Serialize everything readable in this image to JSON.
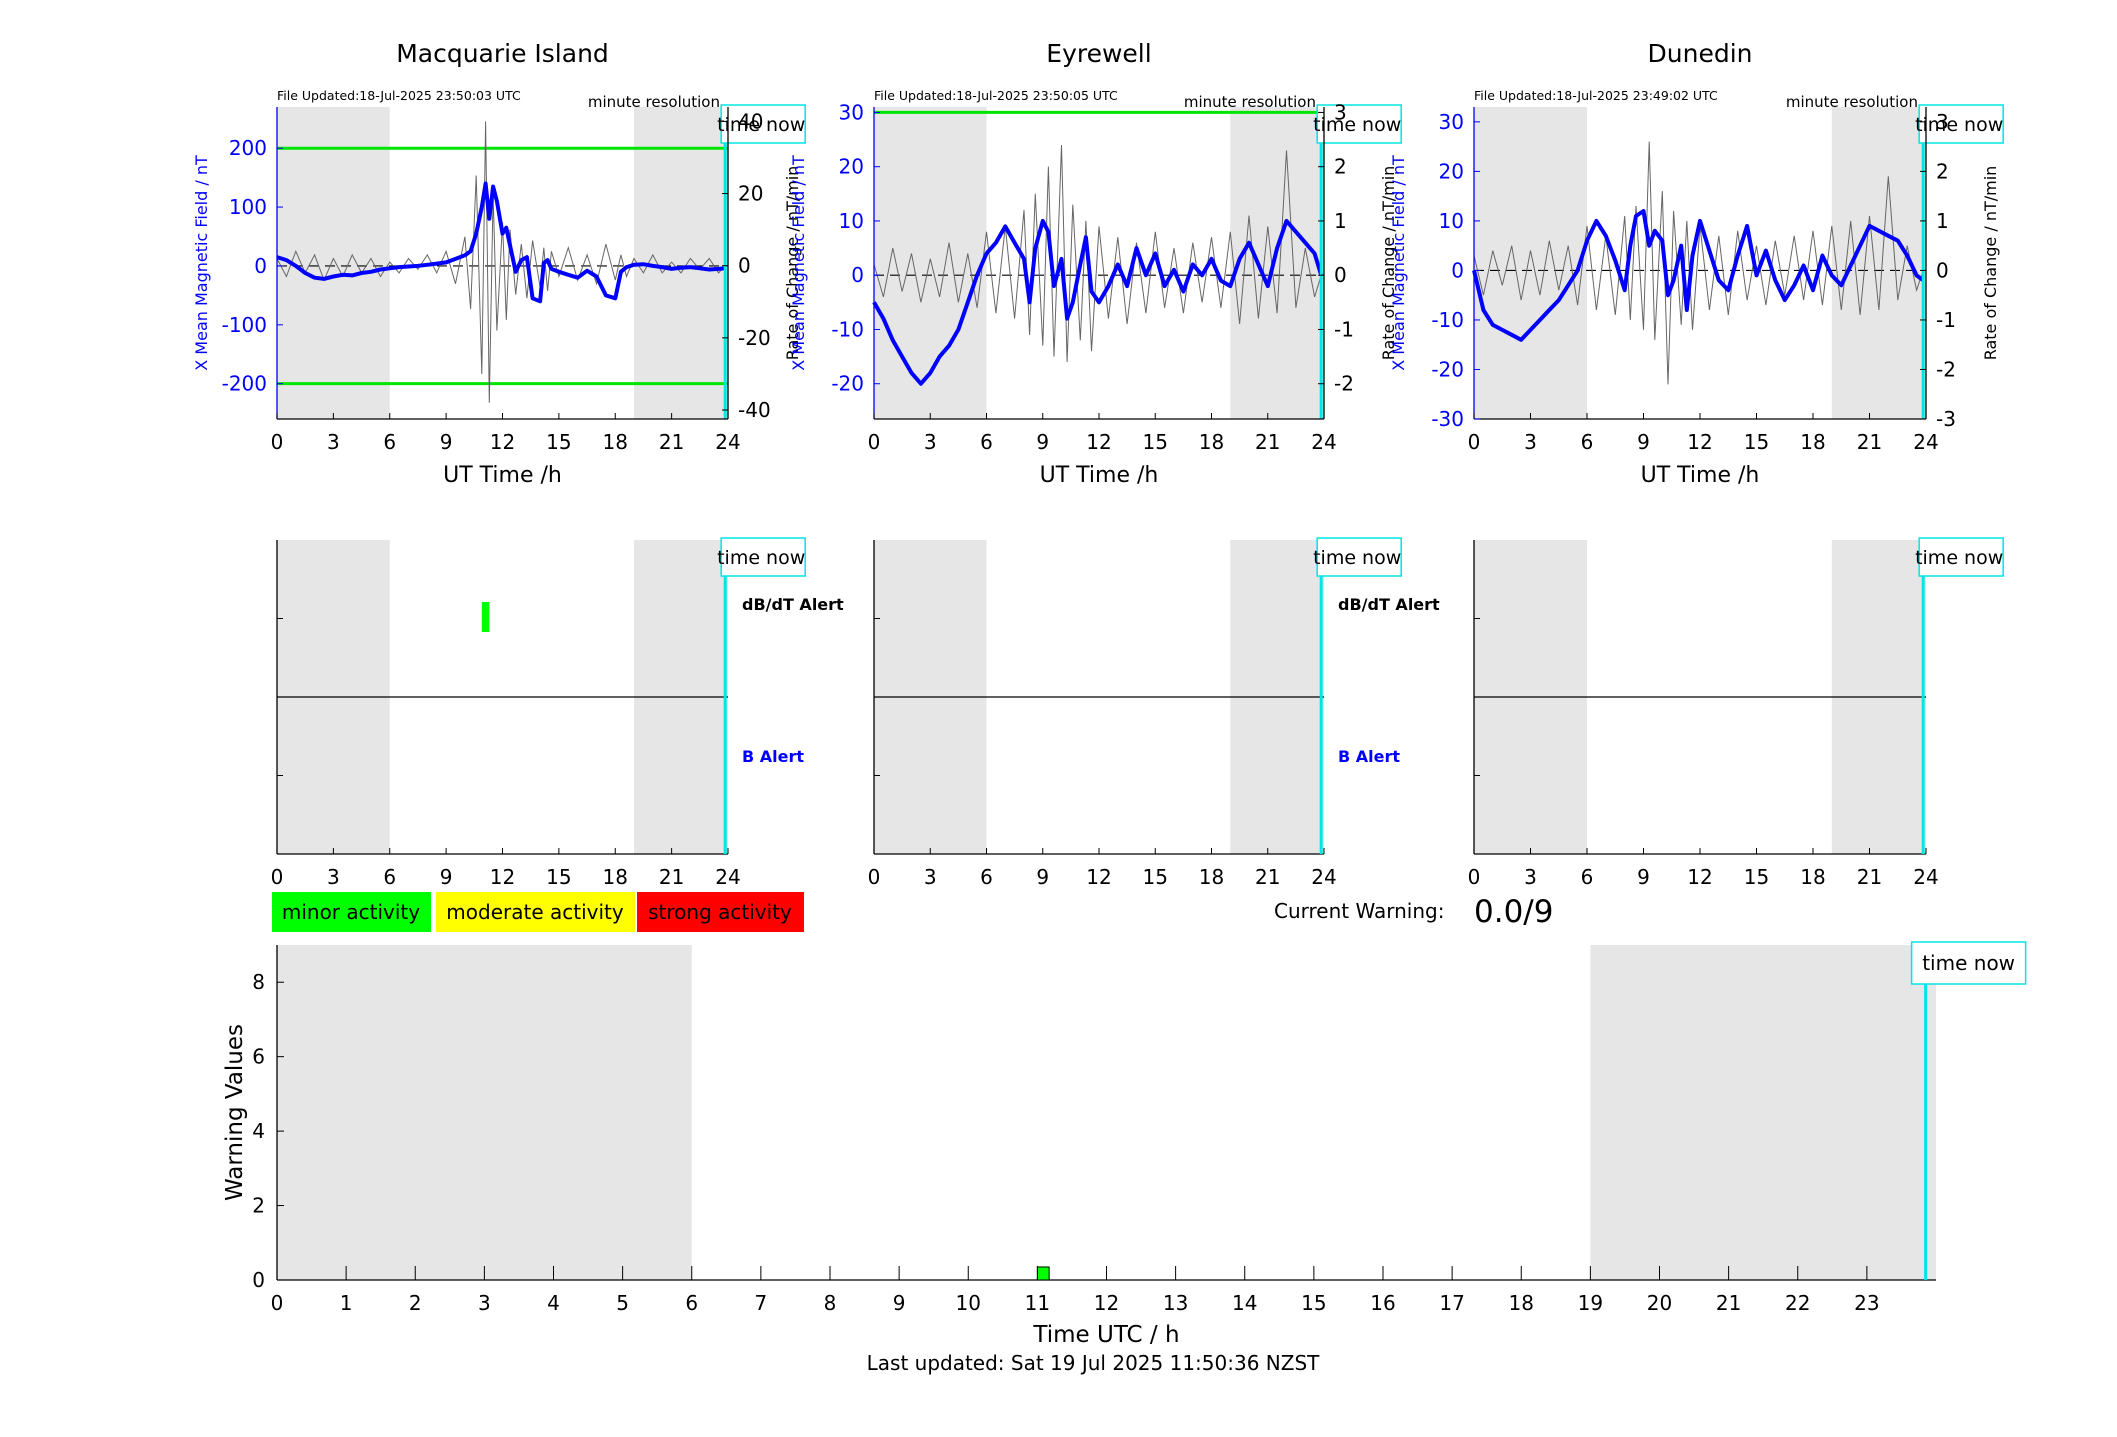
{
  "colors": {
    "shade": "#e6e6e6",
    "blue": "#0000ff",
    "cyan": "#00e5e5",
    "limit_green": "#00e600",
    "rate_gray": "#666666",
    "minor": "#00ff00",
    "moderate": "#ffff00",
    "strong": "#ff0000"
  },
  "stations": [
    {
      "name": "Macquarie Island",
      "file_updated": "File Updated:18-Jul-2025 23:50:03 UTC",
      "resolution": "minute resolution",
      "time_now_label": "time now",
      "ylabel_left": "X Mean Magnetic Field / nT",
      "ylabel_right": "Rate of Change / nT/min",
      "xlabel": "UT Time /h",
      "xticks": [
        "0",
        "3",
        "6",
        "9",
        "12",
        "15",
        "18",
        "21",
        "24"
      ],
      "yticks_left": [
        "-200",
        "-100",
        "0",
        "100",
        "200"
      ],
      "yticks_right": [
        "-40",
        "-20",
        "0",
        "20",
        "40"
      ],
      "alert_labels": {
        "dbdt": "dB/dT Alert",
        "b": "B Alert"
      },
      "alert_xticks": [
        "0",
        "3",
        "6",
        "9",
        "12",
        "15",
        "18",
        "21",
        "24"
      ]
    },
    {
      "name": "Eyrewell",
      "file_updated": "File Updated:18-Jul-2025 23:50:05 UTC",
      "resolution": "minute resolution",
      "time_now_label": "time now",
      "ylabel_left": "X Mean Magnetic Field / nT",
      "ylabel_right": "Rate of Change / nT/min",
      "xlabel": "UT Time /h",
      "xticks": [
        "0",
        "3",
        "6",
        "9",
        "12",
        "15",
        "18",
        "21",
        "24"
      ],
      "yticks_left": [
        "-20",
        "-10",
        "0",
        "10",
        "20",
        "30"
      ],
      "yticks_right": [
        "-2",
        "-1",
        "0",
        "1",
        "2",
        "3"
      ],
      "alert_labels": {
        "dbdt": "dB/dT Alert",
        "b": "B Alert"
      },
      "alert_xticks": [
        "0",
        "3",
        "6",
        "9",
        "12",
        "15",
        "18",
        "21",
        "24"
      ]
    },
    {
      "name": "Dunedin",
      "file_updated": "File Updated:18-Jul-2025 23:49:02 UTC",
      "resolution": "minute resolution",
      "time_now_label": "time now",
      "ylabel_left": "X Mean Magnetic Field / nT",
      "ylabel_right": "Rate of Change / nT/min",
      "xlabel": "UT Time /h",
      "xticks": [
        "0",
        "3",
        "6",
        "9",
        "12",
        "15",
        "18",
        "21",
        "24"
      ],
      "yticks_left": [
        "-30",
        "-20",
        "-10",
        "0",
        "10",
        "20",
        "30"
      ],
      "yticks_right": [
        "-3",
        "-2",
        "-1",
        "0",
        "1",
        "2",
        "3"
      ],
      "alert_labels": {
        "dbdt": "",
        "b": ""
      },
      "alert_xticks": [
        "0",
        "3",
        "6",
        "9",
        "12",
        "15",
        "18",
        "21",
        "24"
      ]
    }
  ],
  "legend": {
    "minor": "minor activity",
    "moderate": "moderate activity",
    "strong": "strong activity"
  },
  "current_warning": {
    "label": "Current Warning:",
    "value": "0.0/9"
  },
  "warning_panel": {
    "ylabel": "Warning Values",
    "xlabel": "Time UTC / h",
    "time_now_label": "time now",
    "yticks": [
      "0",
      "2",
      "4",
      "6",
      "8"
    ],
    "xticks": [
      "0",
      "1",
      "2",
      "3",
      "4",
      "5",
      "6",
      "7",
      "8",
      "9",
      "10",
      "11",
      "12",
      "13",
      "14",
      "15",
      "16",
      "17",
      "18",
      "19",
      "20",
      "21",
      "22",
      "23"
    ]
  },
  "last_updated": "Last updated: Sat 19 Jul 2025 11:50:36 NZST",
  "chart_data": [
    {
      "type": "line",
      "title": "Macquarie Island",
      "xlabel": "UT Time /h",
      "ylabel": "X Mean Magnetic Field / nT",
      "y2label": "Rate of Change / nT/min",
      "xlim": [
        0,
        24
      ],
      "ylim": [
        -260,
        270
      ],
      "y2lim": [
        -42.5,
        44
      ],
      "night_shading_h": [
        [
          0,
          6
        ],
        [
          19,
          24
        ]
      ],
      "time_now_h": 23.85,
      "limit_lines_nT": [
        200,
        -200
      ],
      "series": [
        {
          "axis": "left",
          "x": [
            0,
            0.5,
            1,
            1.5,
            2,
            2.5,
            3,
            3.5,
            4,
            4.5,
            5,
            5.5,
            6,
            6.5,
            7,
            7.5,
            8,
            8.5,
            9,
            9.5,
            10,
            10.3,
            10.6,
            10.9,
            11.1,
            11.3,
            11.5,
            11.7,
            12,
            12.2,
            12.4,
            12.7,
            13,
            13.3,
            13.6,
            14,
            14.2,
            14.4,
            14.6,
            15,
            15.5,
            16,
            16.5,
            17,
            17.5,
            18,
            18.3,
            18.6,
            19,
            19.5,
            20,
            20.5,
            21,
            21.5,
            22,
            22.5,
            23,
            23.5,
            23.85
          ],
          "values": [
            15,
            10,
            0,
            -12,
            -20,
            -22,
            -18,
            -15,
            -16,
            -12,
            -10,
            -6,
            -4,
            -2,
            -1,
            0,
            2,
            4,
            6,
            12,
            18,
            25,
            55,
            100,
            140,
            80,
            135,
            110,
            55,
            65,
            35,
            -10,
            10,
            15,
            -55,
            -60,
            5,
            10,
            -5,
            -10,
            -15,
            -20,
            -8,
            -18,
            -50,
            -55,
            -10,
            -2,
            2,
            3,
            0,
            -2,
            -5,
            -3,
            -2,
            -4,
            -6,
            -5,
            -4
          ]
        },
        {
          "axis": "right",
          "x": [
            0,
            0.5,
            1,
            1.5,
            2,
            2.5,
            3,
            3.5,
            4,
            4.5,
            5,
            5.5,
            6,
            6.5,
            7,
            7.5,
            8,
            8.5,
            9,
            9.5,
            10,
            10.3,
            10.6,
            10.9,
            11.1,
            11.3,
            11.5,
            11.7,
            12,
            12.2,
            12.4,
            12.7,
            13,
            13.3,
            13.6,
            14,
            14.2,
            14.4,
            14.6,
            15,
            15.5,
            16,
            16.5,
            17,
            17.5,
            18,
            18.3,
            18.6,
            19,
            19.5,
            20,
            20.5,
            21,
            21.5,
            22,
            22.5,
            23,
            23.5,
            23.85
          ],
          "values": [
            2,
            -3,
            4,
            -2,
            3,
            -4,
            2,
            -3,
            3,
            -2,
            2,
            -3,
            1,
            -2,
            2,
            -1,
            3,
            -2,
            4,
            -5,
            8,
            -12,
            25,
            -30,
            40,
            -38,
            20,
            -18,
            12,
            -15,
            10,
            -8,
            6,
            -9,
            7,
            -6,
            5,
            -7,
            4,
            -3,
            5,
            -4,
            3,
            -5,
            6,
            -4,
            3,
            -3,
            2,
            -2,
            3,
            -2,
            1,
            -2,
            2,
            -1,
            2,
            -2,
            0
          ]
        }
      ]
    },
    {
      "type": "line",
      "title": "Eyrewell",
      "xlabel": "UT Time /h",
      "ylabel": "X Mean Magnetic Field / nT",
      "y2label": "Rate of Change / nT/min",
      "xlim": [
        0,
        24
      ],
      "ylim": [
        -26.5,
        31
      ],
      "y2lim": [
        -2.65,
        3.1
      ],
      "night_shading_h": [
        [
          0,
          6
        ],
        [
          19,
          24
        ]
      ],
      "time_now_h": 23.85,
      "limit_lines_nT": [
        30
      ],
      "series": [
        {
          "axis": "left",
          "x": [
            0,
            0.5,
            1,
            1.5,
            2,
            2.5,
            3,
            3.5,
            4,
            4.5,
            5,
            5.5,
            6,
            6.5,
            7,
            7.5,
            8,
            8.3,
            8.6,
            9,
            9.3,
            9.6,
            10,
            10.3,
            10.6,
            11,
            11.3,
            11.6,
            12,
            12.5,
            13,
            13.5,
            14,
            14.5,
            15,
            15.5,
            16,
            16.5,
            17,
            17.5,
            18,
            18.5,
            19,
            19.5,
            20,
            20.5,
            21,
            21.5,
            22,
            22.5,
            23,
            23.5,
            23.85
          ],
          "values": [
            -5,
            -8,
            -12,
            -15,
            -18,
            -20,
            -18,
            -15,
            -13,
            -10,
            -5,
            0,
            4,
            6,
            9,
            6,
            3,
            -5,
            5,
            10,
            8,
            -2,
            3,
            -8,
            -5,
            2,
            7,
            -3,
            -5,
            -2,
            2,
            -2,
            5,
            0,
            4,
            -2,
            1,
            -3,
            2,
            0,
            3,
            -1,
            -2,
            3,
            6,
            2,
            -2,
            5,
            10,
            8,
            6,
            4,
            0
          ]
        },
        {
          "axis": "right",
          "x": [
            0,
            0.5,
            1,
            1.5,
            2,
            2.5,
            3,
            3.5,
            4,
            4.5,
            5,
            5.5,
            6,
            6.5,
            7,
            7.5,
            8,
            8.3,
            8.6,
            9,
            9.3,
            9.6,
            10,
            10.3,
            10.6,
            11,
            11.3,
            11.6,
            12,
            12.5,
            13,
            13.5,
            14,
            14.5,
            15,
            15.5,
            16,
            16.5,
            17,
            17.5,
            18,
            18.5,
            19,
            19.5,
            20,
            20.5,
            21,
            21.5,
            22,
            22.5,
            23,
            23.5,
            23.85
          ],
          "values": [
            0.2,
            -0.4,
            0.5,
            -0.3,
            0.4,
            -0.5,
            0.3,
            -0.4,
            0.6,
            -0.5,
            0.4,
            -0.6,
            0.8,
            -0.7,
            0.9,
            -0.8,
            1.2,
            -1.1,
            1.5,
            -1.3,
            2.0,
            -1.5,
            2.4,
            -1.6,
            1.3,
            -1.2,
            1.0,
            -1.4,
            0.9,
            -0.8,
            0.7,
            -0.9,
            0.6,
            -0.7,
            0.8,
            -0.6,
            0.5,
            -0.7,
            0.6,
            -0.5,
            0.7,
            -0.6,
            0.8,
            -0.9,
            1.1,
            -0.8,
            0.9,
            -0.7,
            2.3,
            -0.6,
            0.5,
            -0.4,
            0
          ]
        }
      ]
    },
    {
      "type": "line",
      "title": "Dunedin",
      "xlabel": "UT Time /h",
      "ylabel": "X Mean Magnetic Field / nT",
      "y2label": "Rate of Change / nT/min",
      "xlim": [
        0,
        24
      ],
      "ylim": [
        -30,
        33
      ],
      "y2lim": [
        -3,
        3.3
      ],
      "night_shading_h": [
        [
          0,
          6
        ],
        [
          19,
          24
        ]
      ],
      "time_now_h": 23.85,
      "series": [
        {
          "axis": "left",
          "x": [
            0,
            0.5,
            1,
            1.5,
            2,
            2.5,
            3,
            3.5,
            4,
            4.5,
            5,
            5.5,
            6,
            6.5,
            7,
            7.5,
            8,
            8.3,
            8.6,
            9,
            9.3,
            9.6,
            10,
            10.3,
            10.6,
            11,
            11.3,
            11.6,
            12,
            12.5,
            13,
            13.5,
            14,
            14.5,
            15,
            15.5,
            16,
            16.5,
            17,
            17.5,
            18,
            18.5,
            19,
            19.5,
            20,
            20.5,
            21,
            21.5,
            22,
            22.5,
            23,
            23.5,
            23.85
          ],
          "values": [
            0,
            -8,
            -11,
            -12,
            -13,
            -14,
            -12,
            -10,
            -8,
            -6,
            -3,
            0,
            6,
            10,
            7,
            2,
            -4,
            5,
            11,
            12,
            5,
            8,
            6,
            -5,
            -2,
            5,
            -8,
            3,
            10,
            4,
            -2,
            -4,
            3,
            9,
            -1,
            4,
            -2,
            -6,
            -3,
            1,
            -4,
            3,
            -1,
            -3,
            1,
            5,
            9,
            8,
            7,
            6,
            3,
            -1,
            -2
          ]
        },
        {
          "axis": "right",
          "x": [
            0,
            0.5,
            1,
            1.5,
            2,
            2.5,
            3,
            3.5,
            4,
            4.5,
            5,
            5.5,
            6,
            6.5,
            7,
            7.5,
            8,
            8.3,
            8.6,
            9,
            9.3,
            9.6,
            10,
            10.3,
            10.6,
            11,
            11.3,
            11.6,
            12,
            12.5,
            13,
            13.5,
            14,
            14.5,
            15,
            15.5,
            16,
            16.5,
            17,
            17.5,
            18,
            18.5,
            19,
            19.5,
            20,
            20.5,
            21,
            21.5,
            22,
            22.5,
            23,
            23.5,
            23.85
          ],
          "values": [
            0.3,
            -0.5,
            0.4,
            -0.3,
            0.5,
            -0.6,
            0.4,
            -0.5,
            0.6,
            -0.4,
            0.5,
            -0.7,
            0.9,
            -0.8,
            0.7,
            -0.9,
            1.1,
            -1.0,
            1.3,
            -1.2,
            2.6,
            -1.4,
            1.6,
            -2.3,
            1.2,
            -1.1,
            1.0,
            -1.2,
            0.9,
            -0.8,
            0.7,
            -0.9,
            0.8,
            -0.6,
            0.5,
            -0.7,
            0.6,
            -0.5,
            0.7,
            -0.6,
            0.8,
            -0.7,
            0.9,
            -0.8,
            1.0,
            -0.9,
            1.1,
            -0.8,
            1.9,
            -0.6,
            0.5,
            -0.4,
            0
          ]
        }
      ]
    },
    {
      "type": "bar",
      "title": "",
      "xlabel": "UT Time /h",
      "ylabel": "",
      "xlim": [
        0,
        24
      ],
      "alert_bars": [
        {
          "station": "Macquarie Island",
          "alert": "dB/dT Alert",
          "level": "minor",
          "start_h": 10.9,
          "end_h": 11.3
        }
      ]
    },
    {
      "type": "bar",
      "title": "",
      "xlabel": "Time UTC / h",
      "ylabel": "Warning Values",
      "xlim": [
        0,
        24
      ],
      "ylim": [
        0,
        9
      ],
      "night_shading_h": [
        [
          0,
          6
        ],
        [
          19,
          24
        ]
      ],
      "time_now_h": 23.85,
      "bars": [
        {
          "x_h": 11.0,
          "width_h": 0.17,
          "value": 0.35,
          "level": "minor"
        }
      ]
    }
  ]
}
